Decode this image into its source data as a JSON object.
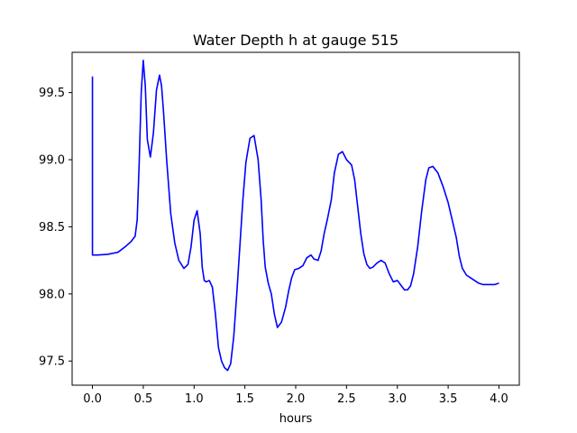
{
  "chart_data": {
    "type": "line",
    "title": "Water Depth h at gauge 515",
    "xlabel": "hours",
    "ylabel": "",
    "xlim": [
      -0.2,
      4.2
    ],
    "ylim": [
      97.32,
      99.8
    ],
    "xticks": [
      0.0,
      0.5,
      1.0,
      1.5,
      2.0,
      2.5,
      3.0,
      3.5,
      4.0
    ],
    "xtick_labels": [
      "0.0",
      "0.5",
      "1.0",
      "1.5",
      "2.0",
      "2.5",
      "3.0",
      "3.5",
      "4.0"
    ],
    "yticks": [
      97.5,
      98.0,
      98.5,
      99.0,
      99.5
    ],
    "ytick_labels": [
      "97.5",
      "98.0",
      "98.5",
      "99.0",
      "99.5"
    ],
    "grid": false,
    "series": [
      {
        "color": "#0000ff",
        "x": [
          0.0,
          0.0,
          0.05,
          0.15,
          0.25,
          0.32,
          0.38,
          0.42,
          0.44,
          0.46,
          0.48,
          0.5,
          0.52,
          0.54,
          0.57,
          0.6,
          0.63,
          0.66,
          0.68,
          0.7,
          0.73,
          0.77,
          0.81,
          0.85,
          0.9,
          0.94,
          0.97,
          1.0,
          1.03,
          1.06,
          1.08,
          1.1,
          1.12,
          1.15,
          1.18,
          1.21,
          1.24,
          1.27,
          1.3,
          1.33,
          1.36,
          1.39,
          1.42,
          1.45,
          1.48,
          1.51,
          1.55,
          1.59,
          1.63,
          1.66,
          1.68,
          1.7,
          1.73,
          1.76,
          1.79,
          1.82,
          1.86,
          1.9,
          1.93,
          1.96,
          1.99,
          2.03,
          2.07,
          2.11,
          2.15,
          2.18,
          2.22,
          2.25,
          2.28,
          2.31,
          2.35,
          2.38,
          2.42,
          2.46,
          2.5,
          2.55,
          2.58,
          2.61,
          2.64,
          2.67,
          2.7,
          2.73,
          2.76,
          2.8,
          2.84,
          2.88,
          2.92,
          2.96,
          3.0,
          3.04,
          3.07,
          3.1,
          3.13,
          3.16,
          3.2,
          3.24,
          3.28,
          3.31,
          3.35,
          3.4,
          3.45,
          3.5,
          3.54,
          3.58,
          3.61,
          3.64,
          3.68,
          3.72,
          3.76,
          3.8,
          3.84,
          3.88,
          3.92,
          3.96,
          4.0
        ],
        "y": [
          99.62,
          98.29,
          98.29,
          98.295,
          98.31,
          98.35,
          98.39,
          98.43,
          98.55,
          98.98,
          99.5,
          99.74,
          99.55,
          99.15,
          99.02,
          99.2,
          99.52,
          99.63,
          99.55,
          99.35,
          99.0,
          98.6,
          98.38,
          98.25,
          98.19,
          98.22,
          98.35,
          98.55,
          98.62,
          98.45,
          98.2,
          98.1,
          98.09,
          98.1,
          98.05,
          97.85,
          97.6,
          97.5,
          97.45,
          97.43,
          97.48,
          97.68,
          98.0,
          98.35,
          98.7,
          98.98,
          99.16,
          99.18,
          99.0,
          98.7,
          98.4,
          98.2,
          98.08,
          98.0,
          97.85,
          97.75,
          97.79,
          97.9,
          98.02,
          98.12,
          98.18,
          98.19,
          98.21,
          98.27,
          98.29,
          98.26,
          98.25,
          98.32,
          98.45,
          98.55,
          98.7,
          98.9,
          99.04,
          99.06,
          99.0,
          98.96,
          98.85,
          98.65,
          98.45,
          98.3,
          98.22,
          98.19,
          98.2,
          98.23,
          98.25,
          98.23,
          98.15,
          98.09,
          98.1,
          98.06,
          98.03,
          98.03,
          98.06,
          98.15,
          98.35,
          98.62,
          98.85,
          98.94,
          98.95,
          98.9,
          98.8,
          98.68,
          98.55,
          98.42,
          98.28,
          98.19,
          98.14,
          98.12,
          98.1,
          98.08,
          98.07,
          98.07,
          98.07,
          98.07,
          98.08
        ]
      }
    ]
  }
}
